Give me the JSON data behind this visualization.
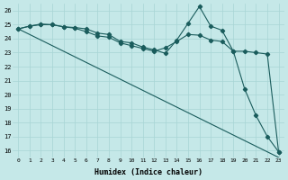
{
  "xlabel": "Humidex (Indice chaleur)",
  "bg_color": "#c5e8e8",
  "grid_color": "#a8d5d5",
  "line_color": "#1a5c5c",
  "xlim": [
    -0.5,
    23.5
  ],
  "ylim": [
    15.5,
    26.5
  ],
  "xticks": [
    0,
    1,
    2,
    3,
    4,
    5,
    6,
    7,
    8,
    9,
    10,
    11,
    12,
    13,
    14,
    15,
    16,
    17,
    18,
    19,
    20,
    21,
    22,
    23
  ],
  "yticks": [
    16,
    17,
    18,
    19,
    20,
    21,
    22,
    23,
    24,
    25,
    26
  ],
  "line_spiky": [
    24.7,
    24.9,
    25.0,
    25.0,
    24.85,
    24.8,
    24.7,
    24.4,
    24.3,
    23.8,
    23.7,
    23.4,
    23.2,
    22.95,
    23.9,
    25.1,
    26.3,
    24.9,
    24.6,
    23.1,
    20.4,
    18.5,
    17.0,
    15.9
  ],
  "line_mid": [
    24.7,
    24.9,
    25.05,
    25.0,
    24.85,
    24.75,
    24.5,
    24.2,
    24.1,
    23.7,
    23.5,
    23.3,
    23.1,
    23.35,
    23.8,
    24.3,
    24.25,
    23.9,
    23.8,
    23.1,
    23.1,
    23.0,
    22.9,
    15.9
  ],
  "line_diag": [
    24.7,
    24.3,
    23.9,
    23.5,
    23.1,
    22.7,
    22.3,
    21.9,
    21.5,
    21.1,
    20.7,
    20.3,
    19.9,
    19.5,
    19.1,
    18.7,
    18.3,
    17.9,
    17.5,
    17.1,
    16.7,
    16.3,
    15.9,
    15.5
  ]
}
